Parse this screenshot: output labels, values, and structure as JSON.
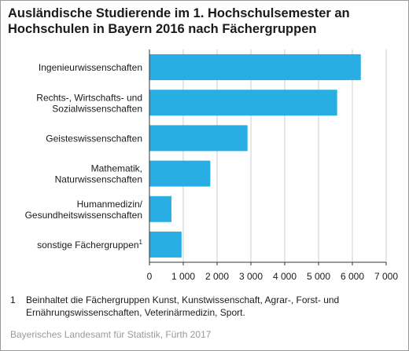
{
  "title_lines": [
    "Ausländische Studierende im 1. Hochschulsemester an",
    "Hochschulen in Bayern 2016 nach Fächergruppen"
  ],
  "colors": {
    "bar": "#29aee3",
    "grid": "#cccccc",
    "axis": "#333333",
    "text": "#1a1a1a",
    "source": "#9a9a9a"
  },
  "chart_data": {
    "type": "bar",
    "orientation": "horizontal",
    "categories": [
      [
        "Ingenieurwissenschaften"
      ],
      [
        "Rechts-, Wirtschafts- und",
        "Sozialwissenschaften"
      ],
      [
        "Geisteswissenschaften"
      ],
      [
        "Mathematik,",
        "Naturwissenschaften"
      ],
      [
        "Humanmedizin/",
        "Gesundheitswissenschaften"
      ],
      [
        "sonstige Fächergruppen"
      ]
    ],
    "category_superscripts": [
      "",
      "",
      "",
      "",
      "",
      "1"
    ],
    "values": [
      6250,
      5550,
      2900,
      1800,
      650,
      950
    ],
    "xlim": [
      0,
      7000
    ],
    "xticks": [
      0,
      1000,
      2000,
      3000,
      4000,
      5000,
      6000,
      7000
    ],
    "xtick_labels": [
      "0",
      "1 000",
      "2 000",
      "3 000",
      "4 000",
      "5 000",
      "6 000",
      "7 000"
    ],
    "grid": true,
    "legend": "none"
  },
  "footnote": {
    "number": "1",
    "text": "Beinhaltet die Fächergruppen Kunst, Kunstwissenschaft, Agrar-, Forst- und Ernährungswissenschaften, Veterinärmedizin, Sport."
  },
  "source": "Bayerisches Landesamt für Statistik, Fürth 2017"
}
